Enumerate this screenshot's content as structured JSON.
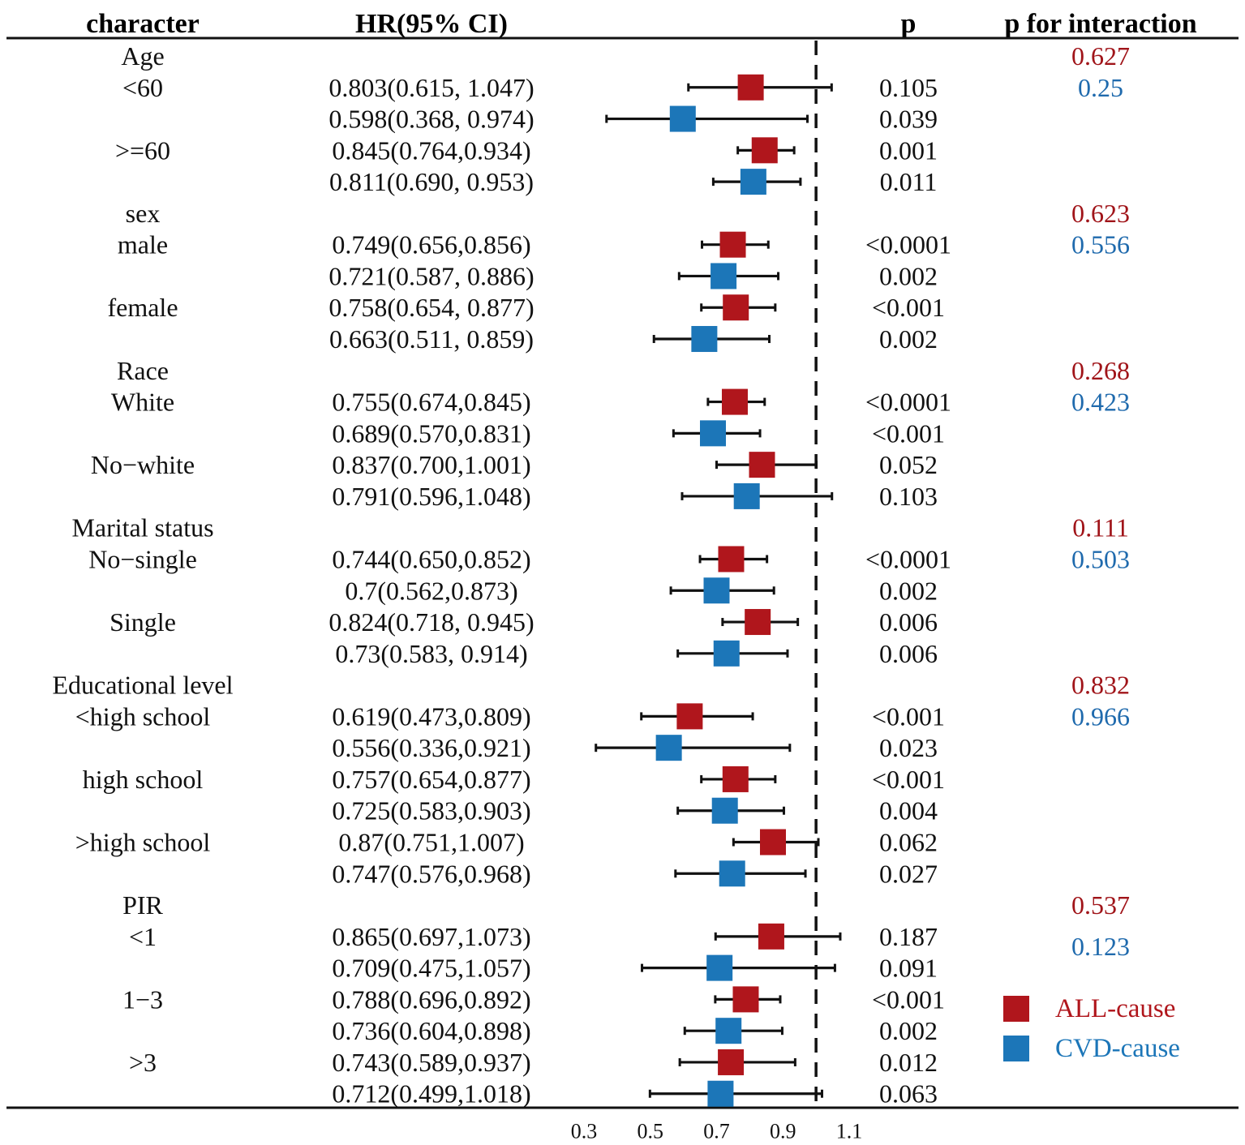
{
  "headers": {
    "character": "character",
    "hr": "HR(95% CI)",
    "p": "p",
    "p_interaction": "p for interaction"
  },
  "colors": {
    "all_cause": "#b0161c",
    "cvd_cause": "#1c76b8",
    "interaction_all": "#a01419",
    "interaction_cvd": "#1f6aad",
    "ink": "#111111"
  },
  "chart_data": {
    "type": "forest",
    "xlabel": "",
    "xlim": [
      0.3,
      1.1
    ],
    "xticks": [
      "0.3",
      "0.5",
      "0.7",
      "0.9",
      "1.1"
    ],
    "reference_line": 1.0,
    "legend": {
      "placement": "bottom-right",
      "items": [
        {
          "name": "ALL-cause",
          "color": "#b0161c"
        },
        {
          "name": "CVD-cause",
          "color": "#1c76b8"
        }
      ]
    },
    "groups": [
      {
        "name": "Age",
        "p_interaction": [
          "0.627",
          "0.25"
        ],
        "subgroups": [
          {
            "label": "<60",
            "rows": [
              {
                "series": "ALL-cause",
                "hr_text": "0.803(0.615, 1.047)",
                "hr": 0.803,
                "lo": 0.615,
                "hi": 1.047,
                "p": "0.105"
              },
              {
                "series": "CVD-cause",
                "hr_text": "0.598(0.368, 0.974)",
                "hr": 0.598,
                "lo": 0.368,
                "hi": 0.974,
                "p": "0.039"
              }
            ]
          },
          {
            "label": ">=60",
            "rows": [
              {
                "series": "ALL-cause",
                "hr_text": "0.845(0.764,0.934)",
                "hr": 0.845,
                "lo": 0.764,
                "hi": 0.934,
                "p": "0.001"
              },
              {
                "series": "CVD-cause",
                "hr_text": "0.811(0.690, 0.953)",
                "hr": 0.811,
                "lo": 0.69,
                "hi": 0.953,
                "p": "0.011"
              }
            ]
          }
        ]
      },
      {
        "name": "sex",
        "p_interaction": [
          "0.623",
          "0.556"
        ],
        "subgroups": [
          {
            "label": "male",
            "rows": [
              {
                "series": "ALL-cause",
                "hr_text": "0.749(0.656,0.856)",
                "hr": 0.749,
                "lo": 0.656,
                "hi": 0.856,
                "p": "<0.0001"
              },
              {
                "series": "CVD-cause",
                "hr_text": "0.721(0.587, 0.886)",
                "hr": 0.721,
                "lo": 0.587,
                "hi": 0.886,
                "p": "0.002"
              }
            ]
          },
          {
            "label": "female",
            "rows": [
              {
                "series": "ALL-cause",
                "hr_text": "0.758(0.654, 0.877)",
                "hr": 0.758,
                "lo": 0.654,
                "hi": 0.877,
                "p": "<0.001"
              },
              {
                "series": "CVD-cause",
                "hr_text": "0.663(0.511, 0.859)",
                "hr": 0.663,
                "lo": 0.511,
                "hi": 0.859,
                "p": "0.002"
              }
            ]
          }
        ]
      },
      {
        "name": "Race",
        "p_interaction": [
          "0.268",
          "0.423"
        ],
        "subgroups": [
          {
            "label": "White",
            "rows": [
              {
                "series": "ALL-cause",
                "hr_text": "0.755(0.674,0.845)",
                "hr": 0.755,
                "lo": 0.674,
                "hi": 0.845,
                "p": "<0.0001"
              },
              {
                "series": "CVD-cause",
                "hr_text": "0.689(0.570,0.831)",
                "hr": 0.689,
                "lo": 0.57,
                "hi": 0.831,
                "p": "<0.001"
              }
            ]
          },
          {
            "label": "No−white",
            "rows": [
              {
                "series": "ALL-cause",
                "hr_text": "0.837(0.700,1.001)",
                "hr": 0.837,
                "lo": 0.7,
                "hi": 1.001,
                "p": "0.052"
              },
              {
                "series": "CVD-cause",
                "hr_text": "0.791(0.596,1.048)",
                "hr": 0.791,
                "lo": 0.596,
                "hi": 1.048,
                "p": "0.103"
              }
            ]
          }
        ]
      },
      {
        "name": "Marital status",
        "p_interaction": [
          "0.111",
          "0.503"
        ],
        "subgroups": [
          {
            "label": "No−single",
            "rows": [
              {
                "series": "ALL-cause",
                "hr_text": "0.744(0.650,0.852)",
                "hr": 0.744,
                "lo": 0.65,
                "hi": 0.852,
                "p": "<0.0001"
              },
              {
                "series": "CVD-cause",
                "hr_text": "0.7(0.562,0.873)",
                "hr": 0.7,
                "lo": 0.562,
                "hi": 0.873,
                "p": "0.002"
              }
            ]
          },
          {
            "label": "Single",
            "rows": [
              {
                "series": "ALL-cause",
                "hr_text": "0.824(0.718, 0.945)",
                "hr": 0.824,
                "lo": 0.718,
                "hi": 0.945,
                "p": "0.006"
              },
              {
                "series": "CVD-cause",
                "hr_text": "0.73(0.583, 0.914)",
                "hr": 0.73,
                "lo": 0.583,
                "hi": 0.914,
                "p": "0.006"
              }
            ]
          }
        ]
      },
      {
        "name": "Educational level",
        "p_interaction": [
          "0.832",
          "0.966"
        ],
        "subgroups": [
          {
            "label": "<high school",
            "rows": [
              {
                "series": "ALL-cause",
                "hr_text": "0.619(0.473,0.809)",
                "hr": 0.619,
                "lo": 0.473,
                "hi": 0.809,
                "p": "<0.001"
              },
              {
                "series": "CVD-cause",
                "hr_text": "0.556(0.336,0.921)",
                "hr": 0.556,
                "lo": 0.336,
                "hi": 0.921,
                "p": "0.023"
              }
            ]
          },
          {
            "label": "high school",
            "rows": [
              {
                "series": "ALL-cause",
                "hr_text": "0.757(0.654,0.877)",
                "hr": 0.757,
                "lo": 0.654,
                "hi": 0.877,
                "p": "<0.001"
              },
              {
                "series": "CVD-cause",
                "hr_text": "0.725(0.583,0.903)",
                "hr": 0.725,
                "lo": 0.583,
                "hi": 0.903,
                "p": "0.004"
              }
            ]
          },
          {
            "label": ">high school",
            "rows": [
              {
                "series": "ALL-cause",
                "hr_text": "0.87(0.751,1.007)",
                "hr": 0.87,
                "lo": 0.751,
                "hi": 1.007,
                "p": "0.062"
              },
              {
                "series": "CVD-cause",
                "hr_text": "0.747(0.576,0.968)",
                "hr": 0.747,
                "lo": 0.576,
                "hi": 0.968,
                "p": "0.027"
              }
            ]
          }
        ]
      },
      {
        "name": "PIR",
        "p_interaction": [
          "0.537",
          "0.123"
        ],
        "subgroups": [
          {
            "label": "<1",
            "rows": [
              {
                "series": "ALL-cause",
                "hr_text": "0.865(0.697,1.073)",
                "hr": 0.865,
                "lo": 0.697,
                "hi": 1.073,
                "p": "0.187"
              },
              {
                "series": "CVD-cause",
                "hr_text": "0.709(0.475,1.057)",
                "hr": 0.709,
                "lo": 0.475,
                "hi": 1.057,
                "p": "0.091"
              }
            ]
          },
          {
            "label": "1−3",
            "rows": [
              {
                "series": "ALL-cause",
                "hr_text": "0.788(0.696,0.892)",
                "hr": 0.788,
                "lo": 0.696,
                "hi": 0.892,
                "p": "<0.001"
              },
              {
                "series": "CVD-cause",
                "hr_text": "0.736(0.604,0.898)",
                "hr": 0.736,
                "lo": 0.604,
                "hi": 0.898,
                "p": "0.002"
              }
            ]
          },
          {
            "label": ">3",
            "rows": [
              {
                "series": "ALL-cause",
                "hr_text": "0.743(0.589,0.937)",
                "hr": 0.743,
                "lo": 0.589,
                "hi": 0.937,
                "p": "0.012"
              },
              {
                "series": "CVD-cause",
                "hr_text": "0.712(0.499,1.018)",
                "hr": 0.712,
                "lo": 0.499,
                "hi": 1.018,
                "p": "0.063"
              }
            ]
          }
        ]
      }
    ]
  }
}
